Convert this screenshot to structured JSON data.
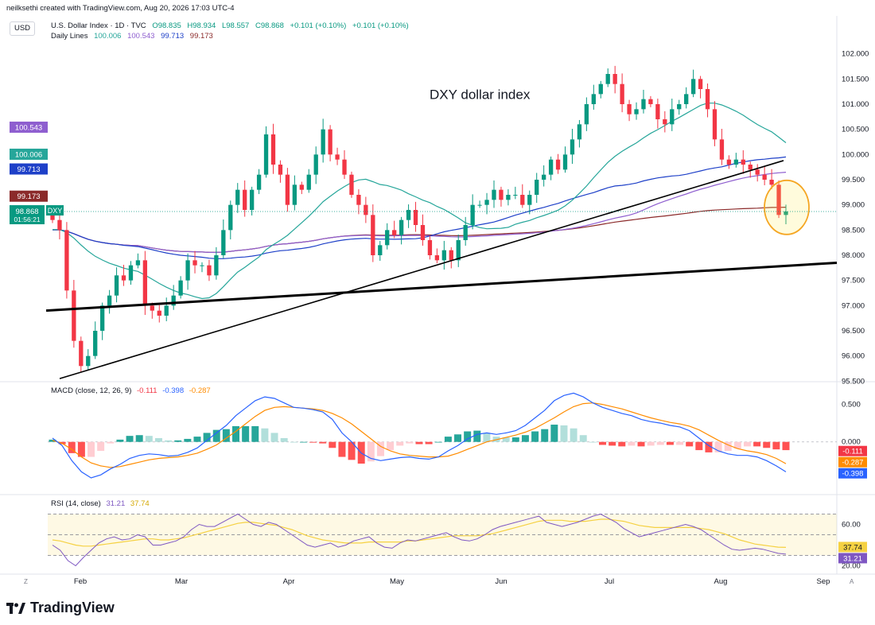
{
  "header": {
    "credit": "neilksethi created with TradingView.com, Aug 20, 2026 17:03 UTC-4",
    "currency_button": "USD"
  },
  "main_legend": {
    "symbol": "U.S. Dollar Index · 1D · TVC",
    "open": "O98.835",
    "high": "H98.934",
    "low": "L98.557",
    "close": "C98.868",
    "change1": "+0.101 (+0.10%)",
    "change2": "+0.101 (+0.10%)",
    "indicator_name": "Daily Lines",
    "indicator_values": [
      "100.006",
      "100.543",
      "99.713",
      "99.173"
    ]
  },
  "annotation": "DXY dollar index",
  "macd_legend": {
    "label": "MACD (close, 12, 26, 9)",
    "values": [
      "-0.111",
      "-0.398",
      "-0.287"
    ]
  },
  "rsi_legend": {
    "label": "RSI (14, close)",
    "values": [
      "31.21",
      "37.74"
    ]
  },
  "footer": {
    "brand": "TradingView",
    "z_button": "Z",
    "a_button": "A"
  },
  "colors": {
    "up": "#089981",
    "down": "#f23645",
    "ma20": "#26a69a",
    "ma50": "#8e5ecf",
    "ma100": "#1e40c8",
    "ma200": "#8b2a2a",
    "macd": "#2962ff",
    "signal": "#ff8c00",
    "rsi": "#7e57c2",
    "rsi_ma": "#f5d142",
    "highlight_circle": "#f5a623"
  },
  "chart_data": [
    {
      "type": "candlestick",
      "title": "U.S. Dollar Index · 1D · TVC",
      "xlabel": "",
      "ylabel": "",
      "x_ticks": [
        "Feb",
        "Mar",
        "Apr",
        "May",
        "Jun",
        "Jul",
        "Aug",
        "Sep"
      ],
      "y_ticks": [
        "95.500",
        "96.000",
        "96.500",
        "97.000",
        "97.500",
        "98.000",
        "98.500",
        "99.000",
        "99.500",
        "100.000",
        "100.500",
        "101.000",
        "101.500",
        "102.000"
      ],
      "ylim": [
        95.3,
        102.2
      ],
      "last_price_label": {
        "value": "98.868",
        "countdown": "01:56:21",
        "symbol": "DXY"
      },
      "ma_labels": [
        {
          "name": "ma100_label",
          "value": "100.543"
        },
        {
          "name": "ma20_label",
          "value": "100.006"
        },
        {
          "name": "ma50_label",
          "value": "99.713"
        },
        {
          "name": "ma200_label",
          "value": "99.173"
        }
      ],
      "close_anchors": [
        [
          98.7,
          98.5,
          97.3,
          96.3,
          95.8,
          96.0,
          96.5,
          97.0,
          97.2,
          97.6,
          97.5,
          97.8,
          97.9,
          97.0,
          96.9,
          96.8,
          97.0,
          97.2,
          97.5,
          97.9,
          97.8,
          97.8,
          97.6,
          98.0,
          98.5,
          99.0,
          99.3,
          98.9,
          99.3,
          99.6,
          100.4,
          99.8,
          99.6,
          99.0,
          99.4,
          99.3,
          99.6,
          100.0,
          100.5,
          100.0,
          99.9,
          99.6,
          99.2,
          99.0,
          98.8,
          98.0,
          98.2,
          98.5,
          98.4,
          98.7,
          98.9,
          98.6,
          98.3,
          98.0,
          97.9,
          98.1,
          97.9,
          98.3,
          98.6,
          99.0,
          99.0,
          99.1,
          99.3,
          99.1,
          99.2,
          99.2,
          99.0,
          99.2,
          99.5,
          99.6,
          99.9,
          99.7,
          100.0,
          100.3,
          100.6,
          101.0,
          101.2,
          101.4,
          101.6,
          101.4,
          101.0,
          100.8,
          100.9,
          101.1,
          101.0,
          100.7,
          100.6,
          100.9,
          101.0,
          101.2,
          101.5,
          101.3,
          100.9,
          100.3,
          99.9,
          99.8,
          99.9,
          99.8,
          99.7,
          99.6,
          99.5,
          99.4,
          98.8,
          98.87
        ]
      ],
      "series": [
        {
          "name": "Daily Lines",
          "last_values": [
            100.006,
            100.543,
            99.713,
            99.173
          ]
        }
      ],
      "trendlines": [
        {
          "from": [
            "2026-01-25",
            95.55
          ],
          "to": [
            "2026-08-14",
            99.88
          ]
        },
        {
          "from": [
            "2026-01-20",
            96.9
          ],
          "to": [
            "2026-09-20",
            97.85
          ]
        }
      ]
    },
    {
      "type": "macd",
      "title": "MACD (close, 12, 26, 9)",
      "y_ticks": [
        "0.500",
        "0.000"
      ],
      "ylim": [
        -0.65,
        0.75
      ],
      "macd": [
        0.05,
        -0.05,
        -0.25,
        -0.4,
        -0.48,
        -0.44,
        -0.36,
        -0.3,
        -0.22,
        -0.18,
        -0.16,
        -0.17,
        -0.19,
        -0.18,
        -0.14,
        -0.08,
        0.02,
        0.12,
        0.22,
        0.35,
        0.45,
        0.55,
        0.6,
        0.58,
        0.52,
        0.46,
        0.45,
        0.43,
        0.4,
        0.3,
        0.12,
        0.0,
        -0.15,
        -0.22,
        -0.25,
        -0.23,
        -0.21,
        -0.2,
        -0.22,
        -0.23,
        -0.2,
        -0.12,
        -0.05,
        0.04,
        0.1,
        0.12,
        0.1,
        0.12,
        0.15,
        0.22,
        0.32,
        0.42,
        0.55,
        0.62,
        0.65,
        0.6,
        0.52,
        0.46,
        0.42,
        0.38,
        0.35,
        0.3,
        0.27,
        0.25,
        0.22,
        0.2,
        0.15,
        0.05,
        -0.05,
        -0.12,
        -0.16,
        -0.18,
        -0.18,
        -0.2,
        -0.25,
        -0.32,
        -0.4
      ],
      "signal": [
        0.02,
        -0.02,
        -0.1,
        -0.2,
        -0.28,
        -0.32,
        -0.34,
        -0.33,
        -0.3,
        -0.27,
        -0.24,
        -0.22,
        -0.21,
        -0.2,
        -0.18,
        -0.15,
        -0.1,
        -0.04,
        0.05,
        0.14,
        0.24,
        0.34,
        0.42,
        0.46,
        0.47,
        0.46,
        0.45,
        0.44,
        0.42,
        0.38,
        0.32,
        0.24,
        0.14,
        0.04,
        -0.06,
        -0.12,
        -0.16,
        -0.18,
        -0.19,
        -0.2,
        -0.2,
        -0.19,
        -0.15,
        -0.1,
        -0.05,
        0.0,
        0.03,
        0.06,
        0.09,
        0.13,
        0.18,
        0.25,
        0.32,
        0.4,
        0.47,
        0.51,
        0.52,
        0.5,
        0.47,
        0.44,
        0.4,
        0.36,
        0.32,
        0.29,
        0.26,
        0.24,
        0.21,
        0.16,
        0.09,
        0.02,
        -0.04,
        -0.09,
        -0.12,
        -0.14,
        -0.17,
        -0.22,
        -0.29
      ],
      "last_values": {
        "histogram": -0.111,
        "signal": -0.287,
        "macd": -0.398
      }
    },
    {
      "type": "rsi",
      "title": "RSI (14, close)",
      "y_ticks": [
        "60.00",
        "20.00"
      ],
      "ylim": [
        15,
        85
      ],
      "bands": [
        30,
        50,
        70
      ],
      "rsi": [
        40,
        35,
        25,
        20,
        28,
        35,
        42,
        46,
        48,
        45,
        46,
        50,
        48,
        40,
        40,
        42,
        44,
        48,
        55,
        60,
        58,
        58,
        62,
        66,
        70,
        65,
        60,
        58,
        62,
        60,
        55,
        50,
        45,
        40,
        38,
        40,
        42,
        38,
        40,
        44,
        46,
        48,
        42,
        38,
        37,
        42,
        45,
        44,
        46,
        48,
        50,
        52,
        48,
        45,
        44,
        46,
        50,
        55,
        58,
        60,
        62,
        64,
        66,
        68,
        62,
        60,
        58,
        60,
        62,
        65,
        68,
        70,
        66,
        62,
        56,
        52,
        48,
        50,
        52,
        54,
        56,
        58,
        60,
        58,
        55,
        50,
        45,
        40,
        36,
        35,
        36,
        37,
        36,
        34,
        32,
        31.21
      ],
      "rsi_ma": [
        45,
        44,
        42,
        40,
        39,
        39,
        40,
        41,
        42,
        43,
        44,
        45,
        46,
        46,
        45,
        45,
        46,
        47,
        49,
        51,
        53,
        55,
        57,
        59,
        61,
        62,
        62,
        61,
        60,
        59,
        57,
        55,
        52,
        49,
        47,
        45,
        44,
        43,
        42,
        42,
        42,
        43,
        43,
        43,
        43,
        43,
        44,
        44,
        45,
        46,
        47,
        48,
        49,
        49,
        49,
        49,
        50,
        51,
        53,
        55,
        57,
        59,
        61,
        63,
        64,
        64,
        64,
        63,
        63,
        63,
        64,
        65,
        65,
        64,
        63,
        61,
        59,
        58,
        57,
        57,
        57,
        57,
        57,
        57,
        56,
        55,
        53,
        51,
        48,
        45,
        43,
        41,
        40,
        39,
        38,
        37.74
      ],
      "last_values": {
        "rsi": 31.21,
        "rsi_ma": 37.74
      }
    }
  ]
}
